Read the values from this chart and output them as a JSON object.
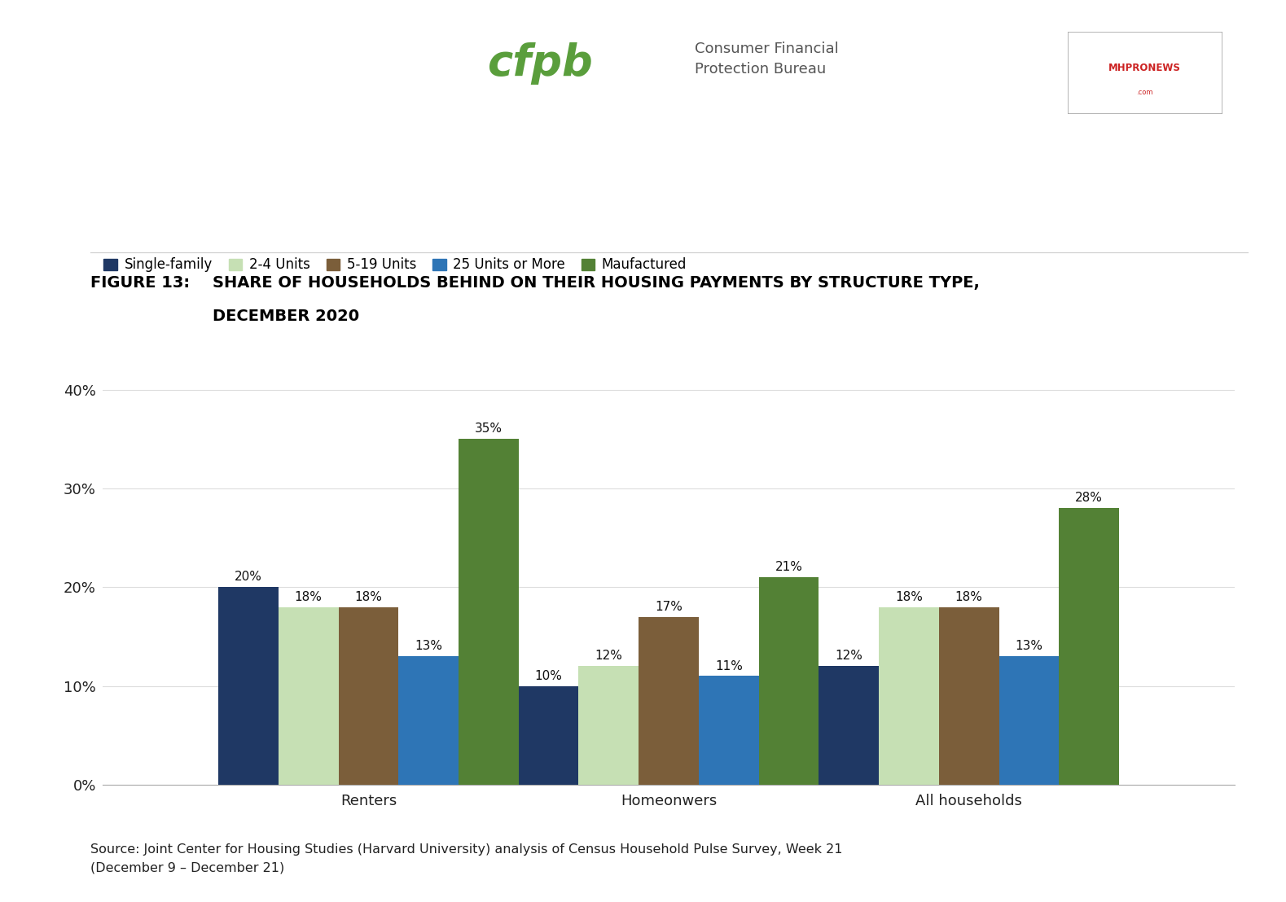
{
  "categories": [
    "Renters",
    "Homeonwers",
    "All households"
  ],
  "series": [
    {
      "name": "Single-family",
      "color": "#1f3864",
      "values": [
        20,
        10,
        12
      ]
    },
    {
      "name": "2-4 Units",
      "color": "#c6e0b4",
      "values": [
        18,
        12,
        18
      ]
    },
    {
      "name": "5-19 Units",
      "color": "#7b5e3a",
      "values": [
        18,
        17,
        18
      ]
    },
    {
      "name": "25 Units or More",
      "color": "#2e75b6",
      "values": [
        13,
        11,
        13
      ]
    },
    {
      "name": "Maufactured",
      "color": "#538135",
      "values": [
        35,
        21,
        28
      ]
    }
  ],
  "ylim": [
    0,
    42
  ],
  "yticks": [
    0,
    10,
    20,
    30,
    40
  ],
  "ytick_labels": [
    "0%",
    "10%",
    "20%",
    "30%",
    "40%"
  ],
  "figure_label": "FIGURE 13:",
  "title_line1": "SHARE OF HOUSEHOLDS BEHIND ON THEIR HOUSING PAYMENTS BY STRUCTURE TYPE,",
  "title_line2": "DECEMBER 2020",
  "source_text": "Source: Joint Center for Housing Studies (Harvard University) analysis of Census Household Pulse Survey, Week 21\n(December 9 – December 21)",
  "background_color": "#ffffff",
  "bar_width": 0.13,
  "value_fontsize": 11,
  "legend_fontsize": 12,
  "axis_fontsize": 13,
  "title_fontsize": 14,
  "figure_label_fontsize": 14,
  "source_fontsize": 11.5
}
